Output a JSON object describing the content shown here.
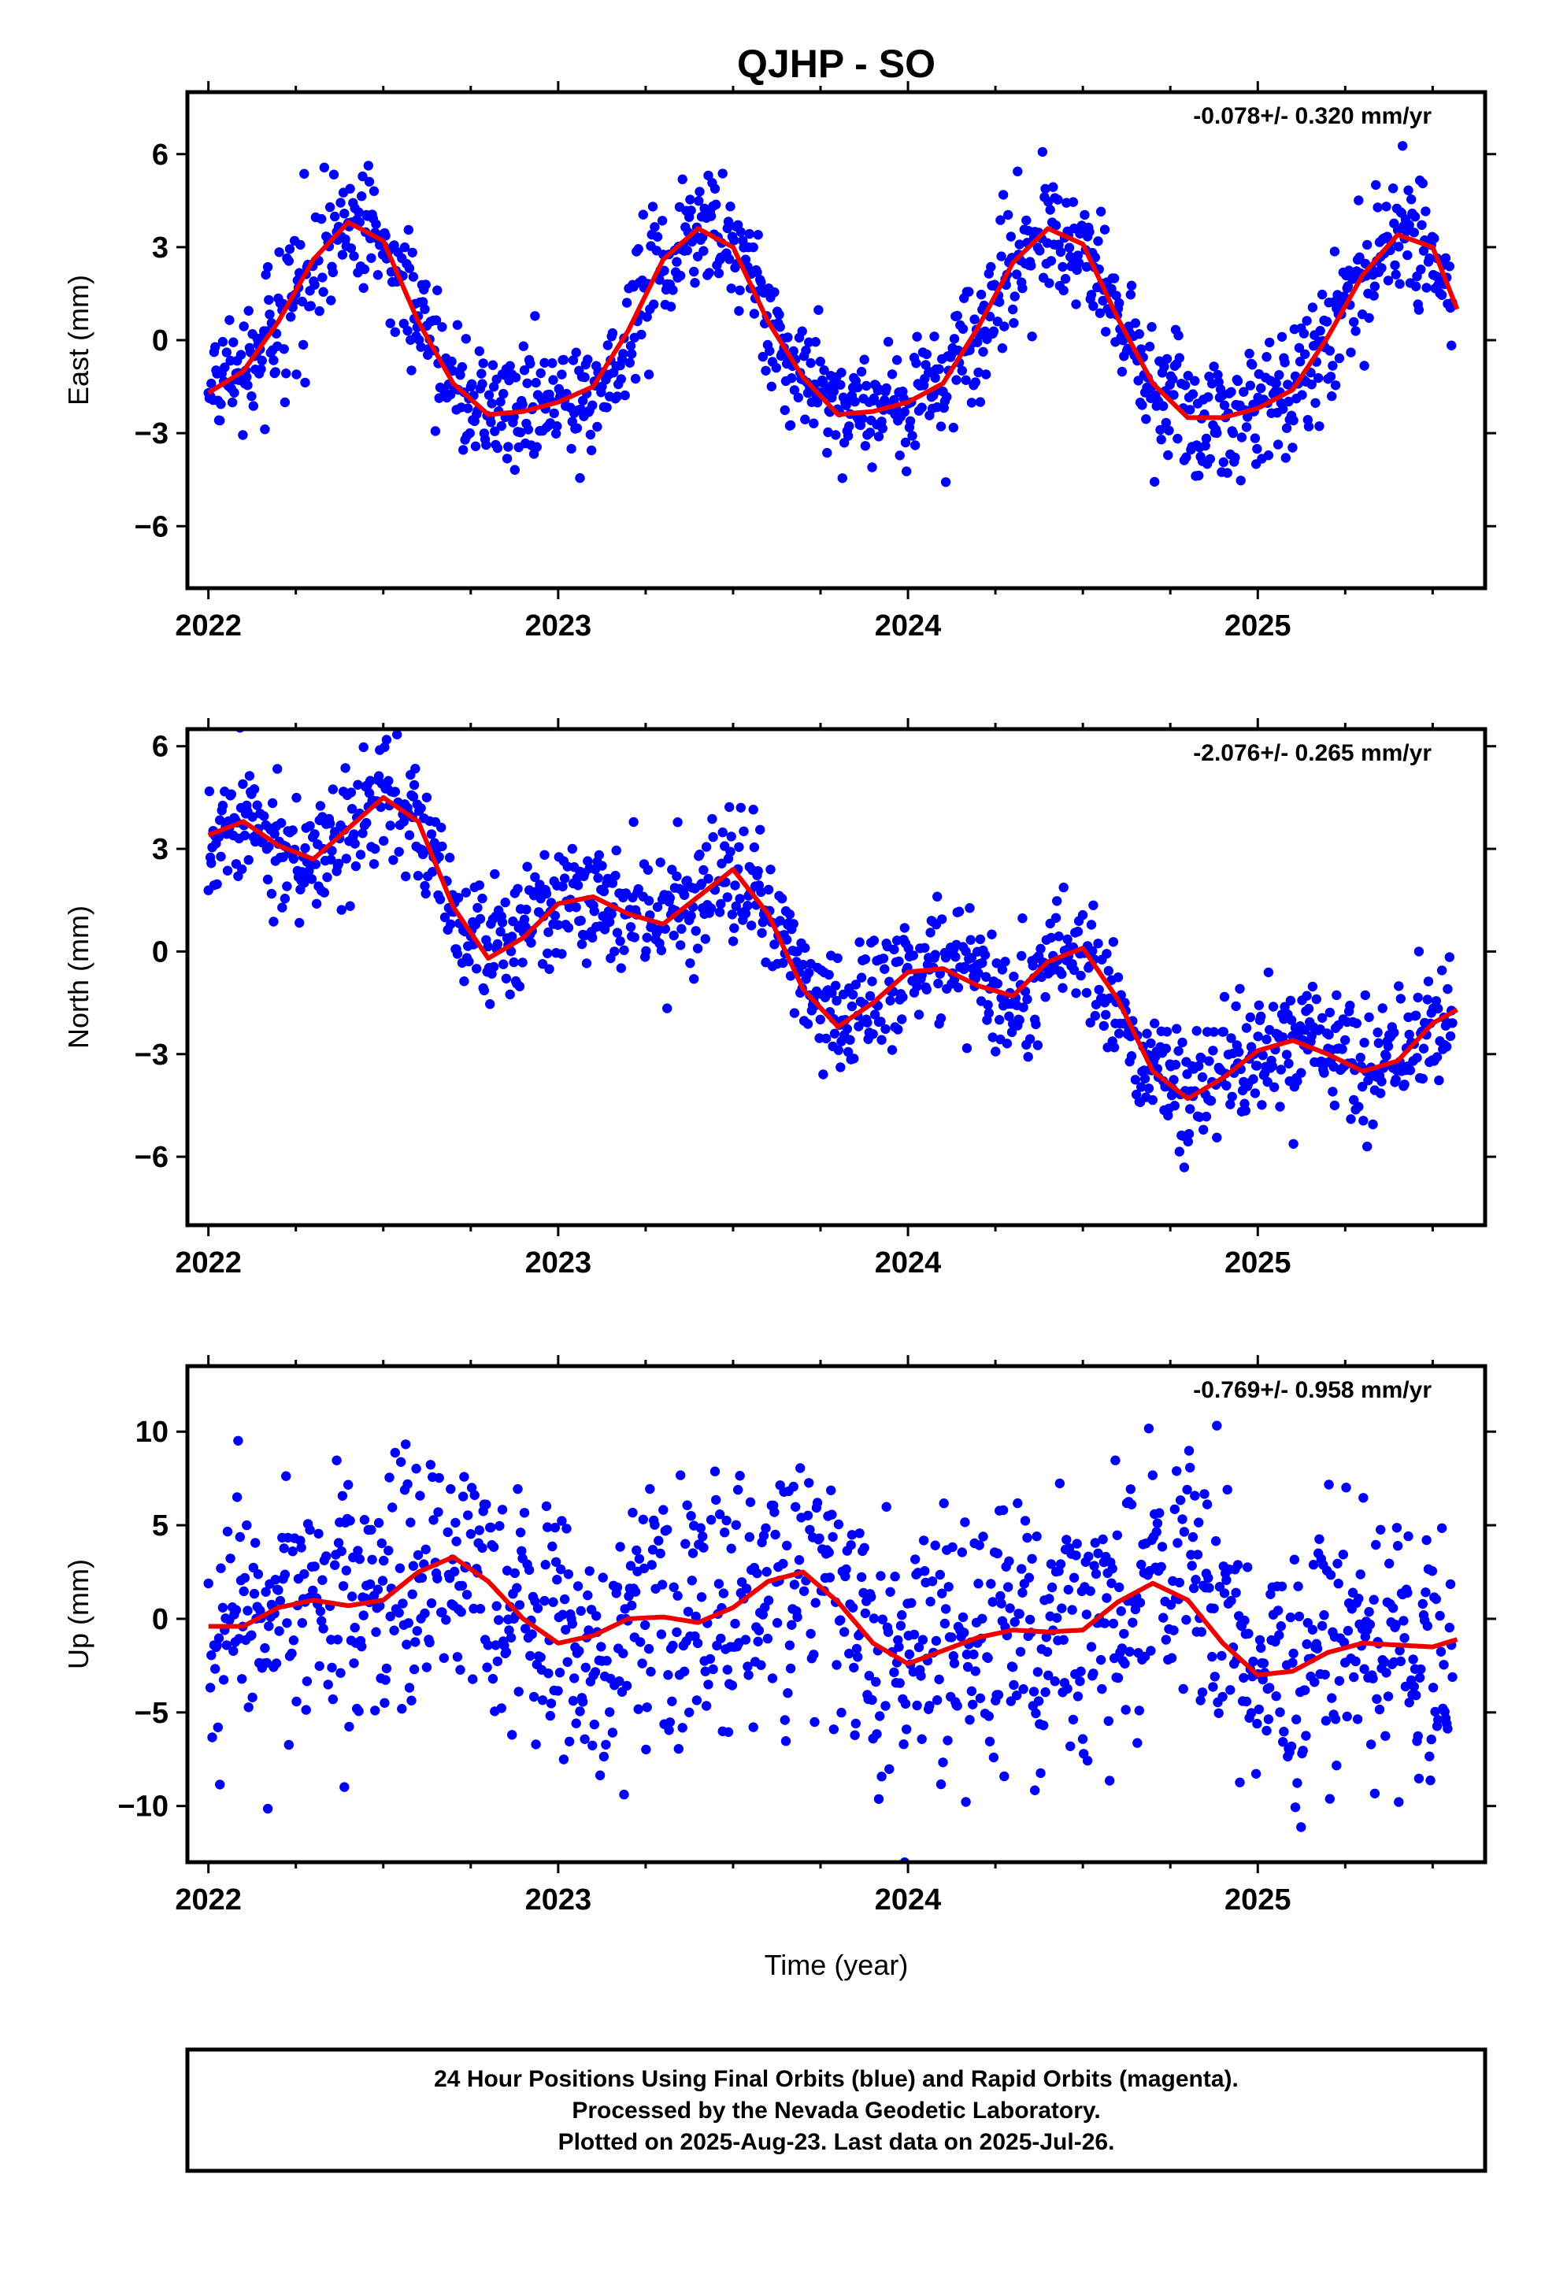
{
  "title": "QJHP - SO",
  "x_axis_label": "Time (year)",
  "footer_lines": [
    "24 Hour Positions Using Final Orbits (blue) and Rapid Orbits (magenta).",
    "Processed by the Nevada Geodetic Laboratory.",
    "Plotted on 2025-Aug-23. Last data on 2025-Jul-26."
  ],
  "colors": {
    "points": "#0000ff",
    "fit": "#ee0000",
    "axes": "#000000"
  },
  "chart_data": [
    {
      "type": "scatter",
      "component": "East",
      "ylabel": "East (mm)",
      "rate_text": "-0.078+/- 0.320 mm/yr",
      "xlim": [
        2021.94,
        2025.65
      ],
      "ylim": [
        -8,
        8
      ],
      "xticks": [
        2022,
        2023,
        2024,
        2025
      ],
      "xtick_labels": [
        "2022",
        "2023",
        "2024",
        "2025"
      ],
      "yticks": [
        -6,
        -3,
        0,
        3,
        6
      ],
      "ytick_labels": [
        "−6",
        "−3",
        "0",
        "3",
        "6"
      ],
      "grid": false,
      "fit_curve": {
        "x": [
          2022.0,
          2022.1,
          2022.2,
          2022.3,
          2022.4,
          2022.5,
          2022.6,
          2022.7,
          2022.8,
          2022.9,
          2023.0,
          2023.1,
          2023.2,
          2023.3,
          2023.4,
          2023.5,
          2023.6,
          2023.7,
          2023.8,
          2023.9,
          2024.0,
          2024.1,
          2024.2,
          2024.3,
          2024.4,
          2024.5,
          2024.6,
          2024.7,
          2024.8,
          2024.9,
          2025.0,
          2025.1,
          2025.2,
          2025.3,
          2025.4,
          2025.5,
          2025.57
        ],
        "y": [
          -1.7,
          -1.0,
          0.6,
          2.6,
          3.8,
          3.2,
          0.6,
          -1.4,
          -2.4,
          -2.3,
          -2.0,
          -1.5,
          0.3,
          2.6,
          3.6,
          3.0,
          0.6,
          -1.2,
          -2.4,
          -2.3,
          -2.0,
          -1.4,
          0.4,
          2.5,
          3.6,
          3.1,
          0.7,
          -1.4,
          -2.5,
          -2.5,
          -2.2,
          -1.6,
          0.1,
          2.1,
          3.4,
          3.0,
          1.0
        ]
      }
    },
    {
      "type": "scatter",
      "component": "North",
      "ylabel": "North (mm)",
      "rate_text": "-2.076+/- 0.265 mm/yr",
      "xlim": [
        2021.94,
        2025.65
      ],
      "ylim": [
        -8,
        6.5
      ],
      "xticks": [
        2022,
        2023,
        2024,
        2025
      ],
      "xtick_labels": [
        "2022",
        "2023",
        "2024",
        "2025"
      ],
      "yticks": [
        -6,
        -3,
        0,
        3,
        6
      ],
      "ytick_labels": [
        "−6",
        "−3",
        "0",
        "3",
        "6"
      ],
      "grid": false,
      "fit_curve": {
        "x": [
          2022.0,
          2022.1,
          2022.2,
          2022.3,
          2022.4,
          2022.5,
          2022.6,
          2022.7,
          2022.8,
          2022.9,
          2023.0,
          2023.1,
          2023.2,
          2023.3,
          2023.4,
          2023.5,
          2023.6,
          2023.7,
          2023.8,
          2023.9,
          2024.0,
          2024.1,
          2024.2,
          2024.3,
          2024.4,
          2024.5,
          2024.6,
          2024.7,
          2024.8,
          2024.9,
          2025.0,
          2025.1,
          2025.2,
          2025.3,
          2025.4,
          2025.5,
          2025.57
        ],
        "y": [
          3.4,
          3.8,
          3.1,
          2.7,
          3.6,
          4.5,
          3.8,
          1.3,
          -0.2,
          0.4,
          1.4,
          1.6,
          1.1,
          0.8,
          1.6,
          2.4,
          1.1,
          -1.1,
          -2.2,
          -1.5,
          -0.6,
          -0.5,
          -1.0,
          -1.3,
          -0.3,
          0.1,
          -1.4,
          -3.5,
          -4.3,
          -3.7,
          -2.9,
          -2.6,
          -3.0,
          -3.5,
          -3.2,
          -2.1,
          -1.7
        ]
      }
    },
    {
      "type": "scatter",
      "component": "Up",
      "ylabel": "Up (mm)",
      "rate_text": "-0.769+/- 0.958 mm/yr",
      "xlim": [
        2021.94,
        2025.65
      ],
      "ylim": [
        -13,
        13.5
      ],
      "xticks": [
        2022,
        2023,
        2024,
        2025
      ],
      "xtick_labels": [
        "2022",
        "2023",
        "2024",
        "2025"
      ],
      "yticks": [
        -10,
        -5,
        0,
        5,
        10
      ],
      "ytick_labels": [
        "−10",
        "−5",
        "0",
        "5",
        "10"
      ],
      "grid": false,
      "fit_curve": {
        "x": [
          2022.0,
          2022.1,
          2022.2,
          2022.3,
          2022.4,
          2022.5,
          2022.6,
          2022.7,
          2022.8,
          2022.9,
          2023.0,
          2023.1,
          2023.2,
          2023.3,
          2023.4,
          2023.5,
          2023.6,
          2023.7,
          2023.8,
          2023.9,
          2024.0,
          2024.1,
          2024.2,
          2024.3,
          2024.4,
          2024.5,
          2024.6,
          2024.7,
          2024.8,
          2024.9,
          2025.0,
          2025.1,
          2025.2,
          2025.3,
          2025.4,
          2025.5,
          2025.57
        ],
        "y": [
          -0.4,
          -0.4,
          0.6,
          1.0,
          0.7,
          1.0,
          2.5,
          3.3,
          2.0,
          0.0,
          -1.3,
          -0.9,
          0.0,
          0.1,
          -0.2,
          0.6,
          2.0,
          2.5,
          0.9,
          -1.3,
          -2.4,
          -1.7,
          -1.0,
          -0.6,
          -0.7,
          -0.6,
          0.9,
          1.9,
          1.0,
          -1.3,
          -3.0,
          -2.8,
          -1.8,
          -1.3,
          -1.4,
          -1.5,
          -1.1
        ]
      }
    }
  ]
}
